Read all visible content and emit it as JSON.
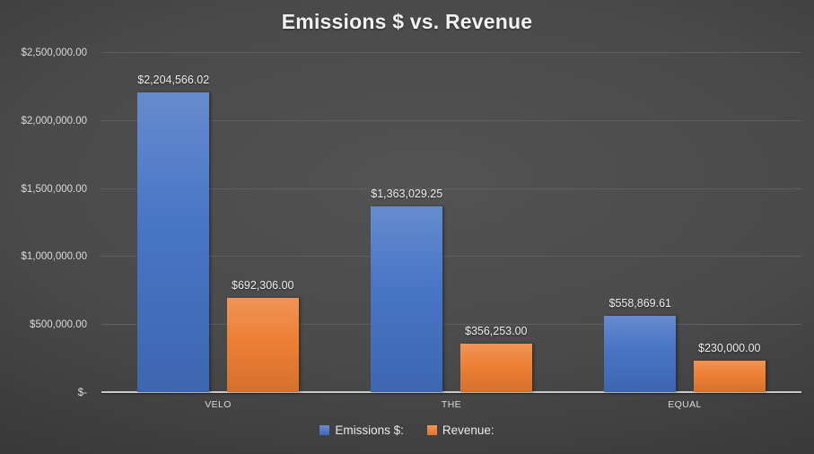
{
  "page": {
    "background_center_color": "#535353",
    "background_edge_color": "#232323"
  },
  "chart_data": {
    "type": "bar",
    "title": "Emissions $ vs. Revenue",
    "categories": [
      "VELO",
      "THE",
      "EQUAL"
    ],
    "series": [
      {
        "name": "Emissions $:",
        "color": "#4472C4",
        "values": [
          2204566.02,
          1363029.25,
          558869.61
        ],
        "value_labels": [
          "$2,204,566.02",
          "$1,363,029.25",
          "$558,869.61"
        ]
      },
      {
        "name": "Revenue:",
        "color": "#ED7D31",
        "values": [
          692306.0,
          356253.0,
          230000.0
        ],
        "value_labels": [
          "$692,306.00",
          "$356,253.00",
          "$230,000.00"
        ]
      }
    ],
    "y_axis": {
      "min": 0,
      "max": 2500000,
      "step": 500000,
      "tick_labels": [
        "$-",
        "$500,000.00",
        "$1,000,000.00",
        "$1,500,000.00",
        "$2,000,000.00",
        "$2,500,000.00"
      ]
    },
    "legend_position": "bottom",
    "grid": true,
    "gridline_color": "#5e5e5e",
    "axis_line_color": "#c9c9c9",
    "tick_text_color": "#d9d9d9",
    "value_label_color": "#ededed",
    "title_color": "#f2f2f2"
  }
}
